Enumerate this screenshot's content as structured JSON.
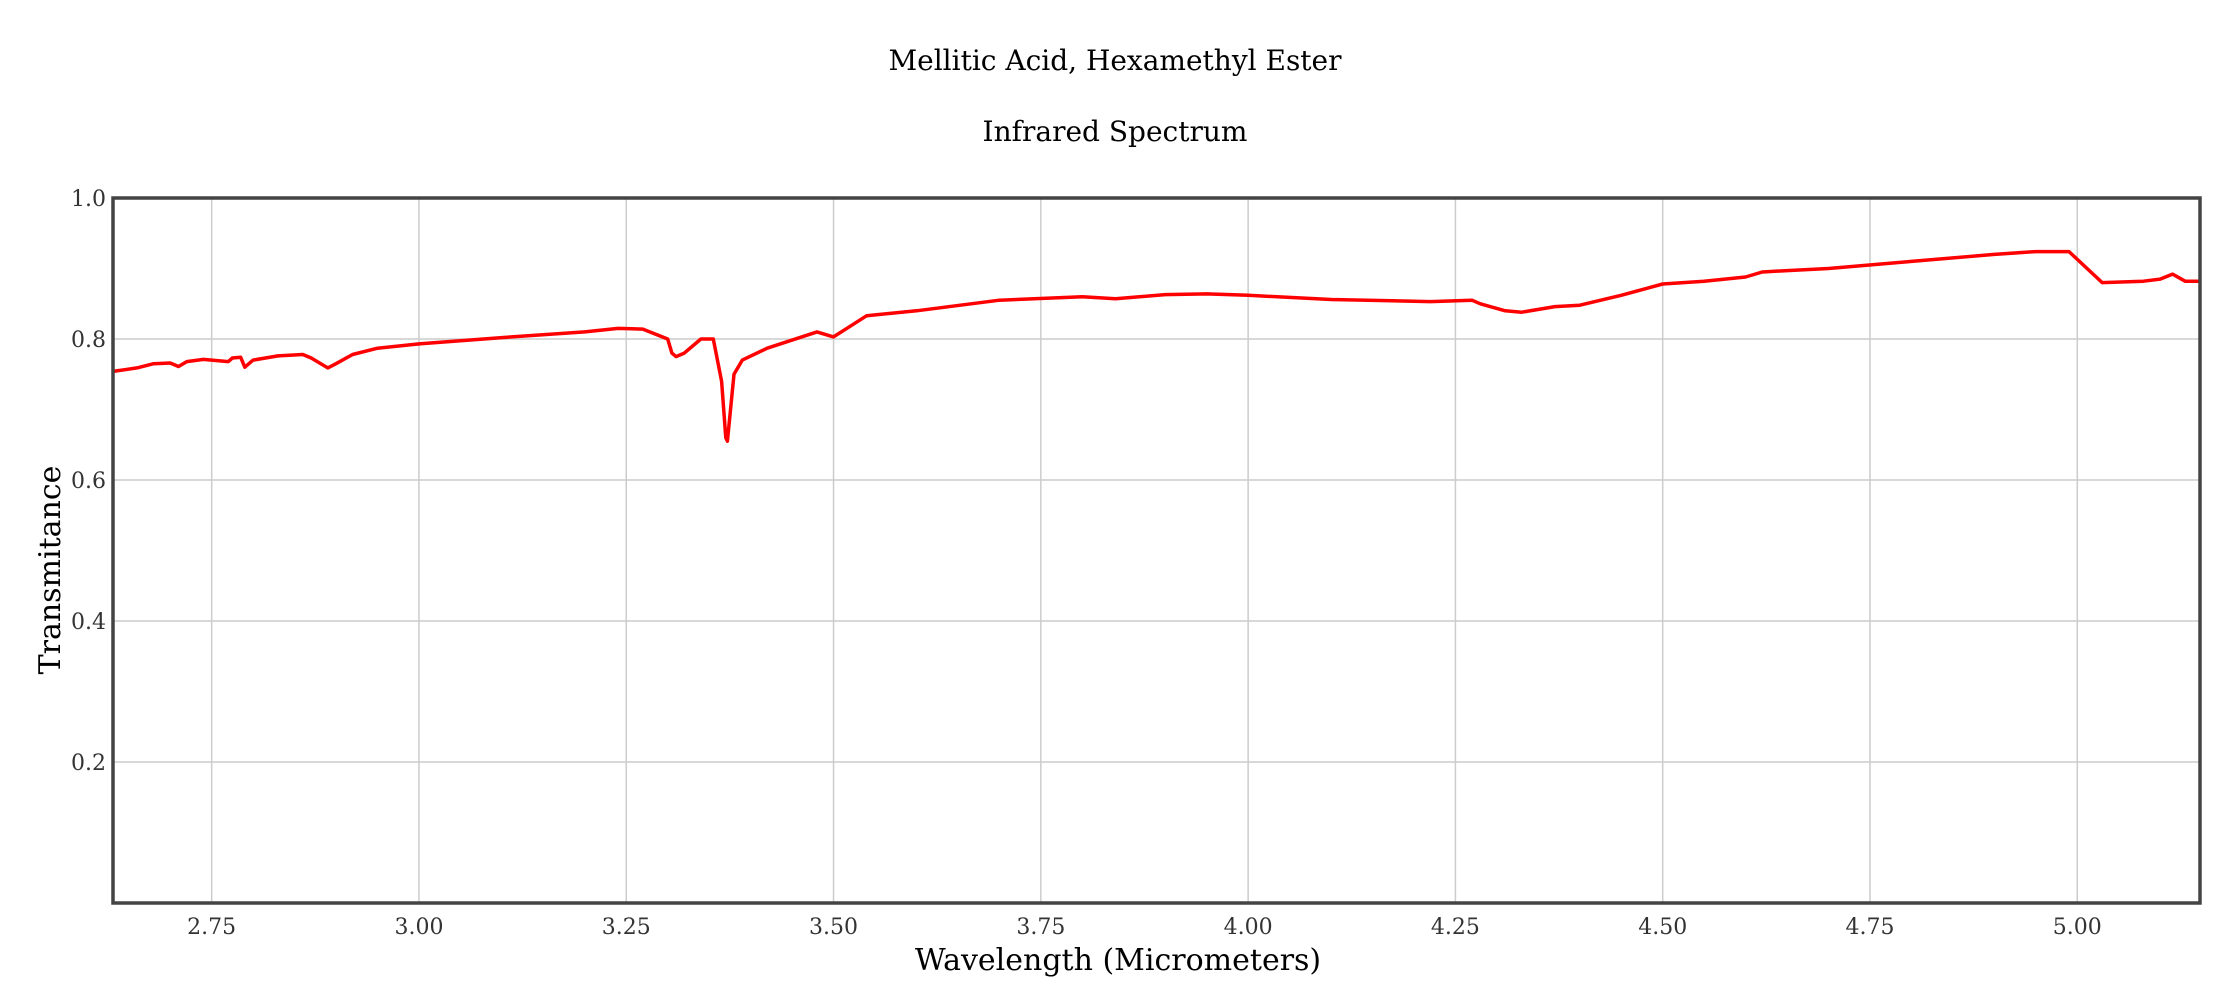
{
  "chart_data": {
    "type": "line",
    "title": "Mellitic Acid, Hexamethyl Ester",
    "subtitle": "Infrared Spectrum",
    "xlabel": "Wavelength (Micrometers)",
    "ylabel": "Transmitance",
    "xlim": [
      2.631,
      5.148
    ],
    "ylim": [
      0.0,
      1.0
    ],
    "grid": true,
    "legend": "none",
    "line_color": "#ff0000",
    "x_ticks": [
      2.75,
      3.0,
      3.25,
      3.5,
      3.75,
      4.0,
      4.25,
      4.5,
      4.75,
      5.0
    ],
    "x_tick_labels": [
      "2.75",
      "3.00",
      "3.25",
      "3.50",
      "3.75",
      "4.00",
      "4.25",
      "4.50",
      "4.75",
      "5.00"
    ],
    "y_ticks": [
      0.2,
      0.4,
      0.6,
      0.8,
      1.0
    ],
    "y_tick_labels": [
      "0.2",
      "0.4",
      "0.6",
      "0.8",
      "1.0"
    ],
    "series": [
      {
        "x": [
          2.631,
          2.66,
          2.68,
          2.7,
          2.71,
          2.72,
          2.74,
          2.77,
          2.775,
          2.785,
          2.79,
          2.8,
          2.83,
          2.86,
          2.87,
          2.89,
          2.9,
          2.92,
          2.95,
          3.0,
          3.1,
          3.2,
          3.24,
          3.27,
          3.3,
          3.305,
          3.31,
          3.32,
          3.34,
          3.355,
          3.365,
          3.37,
          3.372,
          3.38,
          3.39,
          3.42,
          3.48,
          3.5,
          3.52,
          3.54,
          3.6,
          3.7,
          3.8,
          3.84,
          3.9,
          3.95,
          4.0,
          4.1,
          4.22,
          4.27,
          4.28,
          4.31,
          4.33,
          4.37,
          4.4,
          4.45,
          4.5,
          4.55,
          4.6,
          4.62,
          4.65,
          4.7,
          4.8,
          4.9,
          4.95,
          4.99,
          5.03,
          5.08,
          5.1,
          5.115,
          5.13,
          5.148
        ],
        "y": [
          0.754,
          0.759,
          0.765,
          0.766,
          0.761,
          0.768,
          0.771,
          0.768,
          0.773,
          0.774,
          0.76,
          0.77,
          0.776,
          0.778,
          0.773,
          0.759,
          0.765,
          0.778,
          0.787,
          0.793,
          0.802,
          0.81,
          0.815,
          0.814,
          0.8,
          0.78,
          0.775,
          0.78,
          0.8,
          0.8,
          0.74,
          0.66,
          0.655,
          0.75,
          0.77,
          0.787,
          0.81,
          0.803,
          0.818,
          0.833,
          0.84,
          0.855,
          0.86,
          0.857,
          0.863,
          0.864,
          0.862,
          0.856,
          0.853,
          0.855,
          0.85,
          0.84,
          0.838,
          0.846,
          0.848,
          0.862,
          0.878,
          0.882,
          0.888,
          0.895,
          0.897,
          0.9,
          0.91,
          0.92,
          0.924,
          0.924,
          0.88,
          0.882,
          0.885,
          0.892,
          0.882,
          0.882
        ]
      }
    ]
  }
}
